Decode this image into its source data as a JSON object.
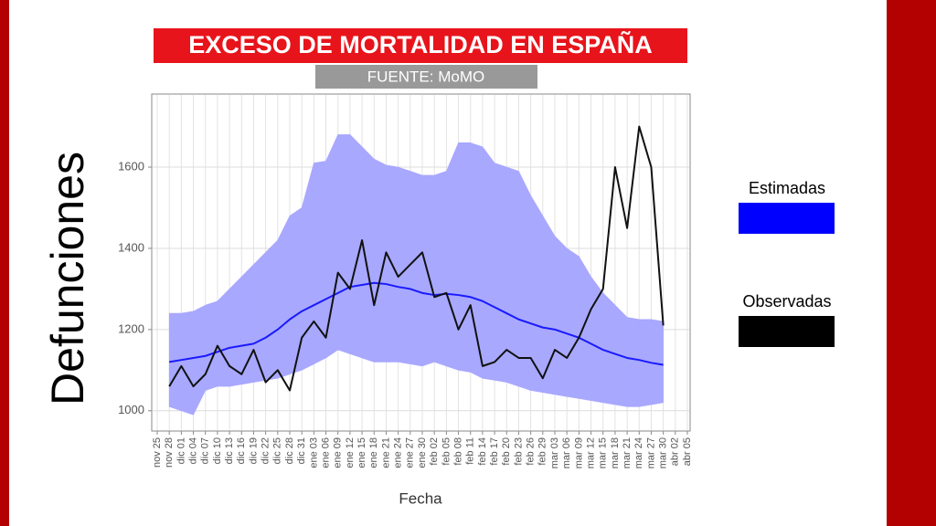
{
  "chart_data": {
    "type": "line",
    "title": "EXCESO DE MORTALIDAD EN ESPAÑA",
    "subtitle": "FUENTE: MoMO",
    "x_label": "Fecha",
    "y_label": "Defunciones",
    "categories": [
      "nov 25",
      "nov 28",
      "dic 01",
      "dic 04",
      "dic 07",
      "dic 10",
      "dic 13",
      "dic 16",
      "dic 19",
      "dic 22",
      "dic 25",
      "dic 28",
      "dic 31",
      "ene 03",
      "ene 06",
      "ene 09",
      "ene 12",
      "ene 15",
      "ene 18",
      "ene 21",
      "ene 24",
      "ene 27",
      "ene 30",
      "feb 02",
      "feb 05",
      "feb 08",
      "feb 11",
      "feb 14",
      "feb 17",
      "feb 20",
      "feb 23",
      "feb 26",
      "feb 29",
      "mar 03",
      "mar 06",
      "mar 09",
      "mar 12",
      "mar 15",
      "mar 18",
      "mar 21",
      "mar 24",
      "mar 27",
      "mar 30",
      "abr 02",
      "abr 05"
    ],
    "series": [
      {
        "name": "Estimadas",
        "color": "#1a1aff",
        "band_color": "#a8a8ff",
        "values": [
          null,
          1120,
          1125,
          1130,
          1135,
          1145,
          1155,
          1160,
          1165,
          1180,
          1200,
          1225,
          1245,
          1260,
          1275,
          1290,
          1305,
          1310,
          1315,
          1312,
          1305,
          1300,
          1290,
          1285,
          1288,
          1285,
          1280,
          1270,
          1255,
          1240,
          1225,
          1215,
          1205,
          1200,
          1190,
          1180,
          1165,
          1150,
          1140,
          1130,
          1125,
          1118,
          1113,
          null,
          null
        ],
        "upper": [
          null,
          1240,
          1240,
          1245,
          1260,
          1270,
          1300,
          1330,
          1360,
          1390,
          1420,
          1480,
          1500,
          1610,
          1615,
          1680,
          1680,
          1650,
          1620,
          1605,
          1600,
          1590,
          1580,
          1580,
          1590,
          1660,
          1660,
          1650,
          1610,
          1600,
          1590,
          1530,
          1480,
          1430,
          1400,
          1380,
          1330,
          1290,
          1260,
          1230,
          1225,
          1225,
          1220,
          null,
          null
        ],
        "lower": [
          null,
          1010,
          1000,
          990,
          1050,
          1060,
          1060,
          1065,
          1070,
          1075,
          1080,
          1090,
          1100,
          1115,
          1130,
          1150,
          1140,
          1130,
          1120,
          1120,
          1120,
          1115,
          1110,
          1120,
          1110,
          1100,
          1095,
          1080,
          1075,
          1070,
          1060,
          1050,
          1045,
          1040,
          1035,
          1030,
          1025,
          1020,
          1015,
          1010,
          1010,
          1015,
          1020,
          null,
          null
        ]
      },
      {
        "name": "Observadas",
        "color": "#111111",
        "values": [
          null,
          1060,
          1110,
          1060,
          1090,
          1160,
          1110,
          1090,
          1150,
          1070,
          1100,
          1050,
          1180,
          1220,
          1180,
          1340,
          1300,
          1420,
          1260,
          1390,
          1330,
          1360,
          1390,
          1280,
          1290,
          1200,
          1260,
          1110,
          1120,
          1150,
          1130,
          1130,
          1080,
          1150,
          1130,
          1180,
          1250,
          1300,
          1600,
          1450,
          1700,
          1600,
          1210,
          null,
          null
        ]
      }
    ],
    "ylim": [
      950,
      1780
    ],
    "yticks": [
      1000,
      1200,
      1400,
      1600
    ],
    "grid": true
  }
}
